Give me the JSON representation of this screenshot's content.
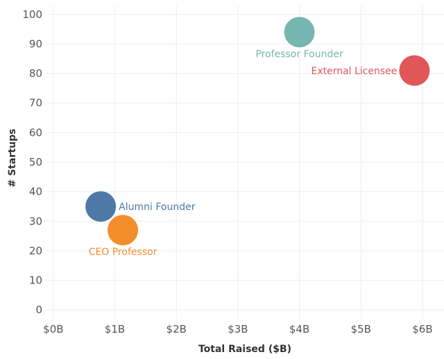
{
  "chart_data": {
    "type": "scatter",
    "title": "",
    "xlabel": "Total Raised ($B)",
    "ylabel": "# Startups",
    "xlim": [
      -0.1,
      6.35
    ],
    "ylim": [
      -3,
      103
    ],
    "x_ticks": [
      {
        "value": 0,
        "label": "$0B"
      },
      {
        "value": 1,
        "label": "$1B"
      },
      {
        "value": 2,
        "label": "$2B"
      },
      {
        "value": 3,
        "label": "$3B"
      },
      {
        "value": 4,
        "label": "$4B"
      },
      {
        "value": 5,
        "label": "$5B"
      },
      {
        "value": 6,
        "label": "$6B"
      }
    ],
    "y_ticks": [
      {
        "value": 0,
        "label": "0"
      },
      {
        "value": 10,
        "label": "10"
      },
      {
        "value": 20,
        "label": "20"
      },
      {
        "value": 30,
        "label": "30"
      },
      {
        "value": 40,
        "label": "40"
      },
      {
        "value": 50,
        "label": "50"
      },
      {
        "value": 60,
        "label": "60"
      },
      {
        "value": 70,
        "label": "70"
      },
      {
        "value": 80,
        "label": "80"
      },
      {
        "value": 90,
        "label": "90"
      },
      {
        "value": 100,
        "label": "100"
      }
    ],
    "grid": true,
    "legend": "none",
    "points": [
      {
        "label": "Professor Founder",
        "x": 4.0,
        "y": 94,
        "color": "#76b7b2",
        "label_position": "below"
      },
      {
        "label": "External Licensee",
        "x": 5.87,
        "y": 81,
        "color": "#e15759",
        "label_position": "left"
      },
      {
        "label": "Alumni Founder",
        "x": 0.77,
        "y": 35,
        "color": "#4e79a7",
        "label_position": "right"
      },
      {
        "label": "CEO Professor",
        "x": 1.13,
        "y": 27,
        "color": "#f28e2b",
        "label_position": "below"
      }
    ]
  }
}
